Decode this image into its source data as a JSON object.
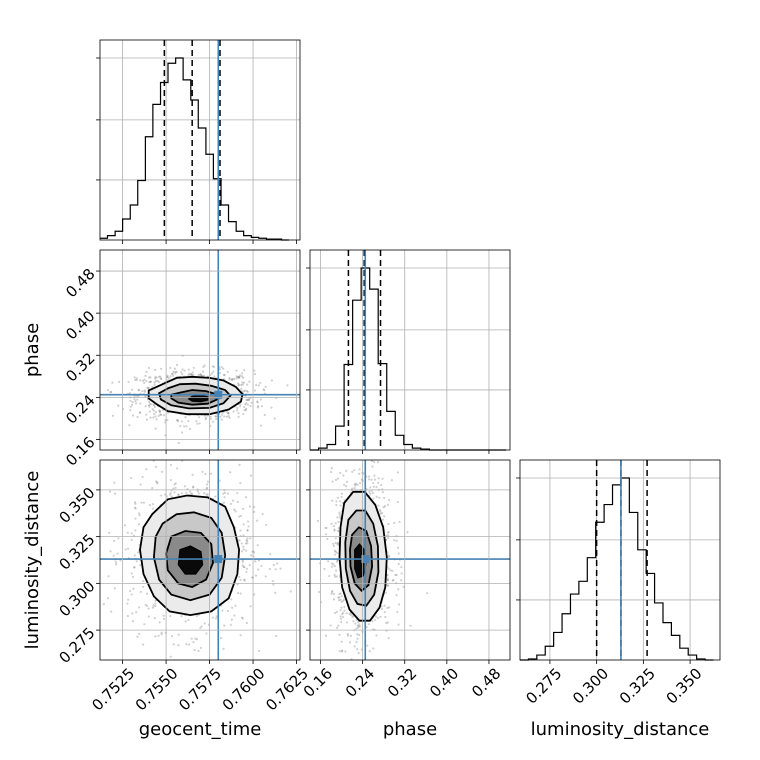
{
  "chart_data": {
    "type": "corner",
    "parameters": [
      "geocent_time",
      "phase",
      "luminosity_distance"
    ],
    "truths": [
      0.758,
      0.245,
      0.313
    ],
    "grid": true,
    "axes": [
      {
        "name": "geocent_time",
        "range": [
          0.7512,
          0.7627
        ],
        "ticks": [
          0.7525,
          0.755,
          0.7575,
          0.76,
          0.7625
        ],
        "tick_labels": [
          "0.7525",
          "0.7550",
          "0.7575",
          "0.7600",
          "0.7625"
        ],
        "quantiles": [
          0.7549,
          0.7565,
          0.7581
        ],
        "histogram": {
          "edges": [
            0.7512,
            0.75163,
            0.75207,
            0.7525,
            0.75294,
            0.75337,
            0.75381,
            0.75424,
            0.75468,
            0.75511,
            0.75555,
            0.75598,
            0.75642,
            0.75685,
            0.75729,
            0.75772,
            0.75816,
            0.75859,
            0.75903,
            0.75946,
            0.7599,
            0.76033,
            0.76077,
            0.7612,
            0.76164,
            0.76207
          ],
          "counts": [
            2,
            5,
            10,
            24,
            40,
            68,
            118,
            155,
            180,
            202,
            208,
            183,
            160,
            128,
            98,
            70,
            40,
            21,
            10,
            5,
            3,
            2,
            1,
            1,
            0
          ]
        }
      },
      {
        "name": "phase",
        "range": [
          0.14,
          0.52
        ],
        "ticks": [
          0.16,
          0.24,
          0.32,
          0.4,
          0.48
        ],
        "tick_labels": [
          "0.16",
          "0.24",
          "0.32",
          "0.40",
          "0.48"
        ],
        "quantiles": [
          0.213,
          0.243,
          0.274
        ],
        "histogram": {
          "edges": [
            0.14,
            0.1562,
            0.1724,
            0.1886,
            0.2048,
            0.221,
            0.2372,
            0.2534,
            0.2696,
            0.2858,
            0.302,
            0.3182,
            0.3344,
            0.3506,
            0.3668,
            0.383,
            0.3992,
            0.4154,
            0.4316,
            0.4478,
            0.464,
            0.4802,
            0.4964,
            0.5126
          ],
          "counts": [
            0,
            2,
            6,
            26,
            93,
            163,
            198,
            175,
            94,
            42,
            16,
            6,
            2,
            1,
            0,
            0,
            0,
            0,
            0,
            0,
            0,
            0,
            0
          ]
        }
      },
      {
        "name": "luminosity_distance",
        "range": [
          0.259,
          0.366
        ],
        "ticks": [
          0.275,
          0.3,
          0.325,
          0.35
        ],
        "tick_labels": [
          "0.275",
          "0.300",
          "0.325",
          "0.350"
        ],
        "quantiles": [
          0.3,
          0.313,
          0.327
        ],
        "histogram": {
          "edges": [
            0.259,
            0.2635,
            0.268,
            0.2725,
            0.277,
            0.2815,
            0.286,
            0.2905,
            0.295,
            0.2995,
            0.304,
            0.3085,
            0.313,
            0.3175,
            0.322,
            0.3265,
            0.331,
            0.3355,
            0.34,
            0.3445,
            0.349,
            0.3535,
            0.358,
            0.3625
          ],
          "counts": [
            0,
            1,
            5,
            14,
            28,
            47,
            67,
            80,
            104,
            140,
            158,
            178,
            185,
            150,
            112,
            88,
            58,
            38,
            25,
            12,
            5,
            1,
            0
          ]
        }
      }
    ],
    "pairs": [
      {
        "x": "geocent_time",
        "y": "phase",
        "peak": [
          0.7568,
          0.235
        ],
        "contours": [
          [
            [
              0.7548,
              0.265
            ],
            [
              0.7556,
              0.277
            ],
            [
              0.7565,
              0.279
            ],
            [
              0.7575,
              0.277
            ],
            [
              0.7583,
              0.272
            ],
            [
              0.759,
              0.26
            ],
            [
              0.7594,
              0.246
            ],
            [
              0.7593,
              0.232
            ],
            [
              0.7586,
              0.217
            ],
            [
              0.7575,
              0.208
            ],
            [
              0.7562,
              0.208
            ],
            [
              0.7551,
              0.214
            ],
            [
              0.7545,
              0.226
            ],
            [
              0.754,
              0.238
            ],
            [
              0.754,
              0.253
            ]
          ],
          [
            [
              0.7551,
              0.257
            ],
            [
              0.7558,
              0.265
            ],
            [
              0.7567,
              0.266
            ],
            [
              0.7576,
              0.262
            ],
            [
              0.7584,
              0.254
            ],
            [
              0.7587,
              0.243
            ],
            [
              0.7583,
              0.229
            ],
            [
              0.7575,
              0.22
            ],
            [
              0.7563,
              0.219
            ],
            [
              0.7553,
              0.225
            ],
            [
              0.7547,
              0.236
            ],
            [
              0.7546,
              0.248
            ]
          ],
          [
            [
              0.7558,
              0.249
            ],
            [
              0.7565,
              0.254
            ],
            [
              0.7573,
              0.252
            ],
            [
              0.7579,
              0.246
            ],
            [
              0.758,
              0.237
            ],
            [
              0.7574,
              0.228
            ],
            [
              0.7565,
              0.226
            ],
            [
              0.7557,
              0.23
            ],
            [
              0.7553,
              0.238
            ],
            [
              0.7553,
              0.245
            ]
          ],
          [
            [
              0.7565,
              0.242
            ],
            [
              0.757,
              0.244
            ],
            [
              0.7574,
              0.241
            ],
            [
              0.7574,
              0.235
            ],
            [
              0.757,
              0.232
            ],
            [
              0.7565,
              0.233
            ],
            [
              0.7563,
              0.237
            ]
          ]
        ]
      },
      {
        "x": "geocent_time",
        "y": "luminosity_distance",
        "peak": [
          0.7563,
          0.313
        ],
        "contours": [
          [
            [
              0.7542,
              0.337
            ],
            [
              0.7551,
              0.345
            ],
            [
              0.7562,
              0.347
            ],
            [
              0.7574,
              0.346
            ],
            [
              0.7584,
              0.341
            ],
            [
              0.7589,
              0.33
            ],
            [
              0.7592,
              0.318
            ],
            [
              0.7591,
              0.305
            ],
            [
              0.7586,
              0.292
            ],
            [
              0.7576,
              0.285
            ],
            [
              0.7564,
              0.283
            ],
            [
              0.7552,
              0.285
            ],
            [
              0.7543,
              0.293
            ],
            [
              0.7537,
              0.305
            ],
            [
              0.7535,
              0.318
            ],
            [
              0.7537,
              0.33
            ]
          ],
          [
            [
              0.7548,
              0.332
            ],
            [
              0.7556,
              0.337
            ],
            [
              0.7566,
              0.338
            ],
            [
              0.7576,
              0.335
            ],
            [
              0.7582,
              0.327
            ],
            [
              0.7584,
              0.315
            ],
            [
              0.7582,
              0.303
            ],
            [
              0.7575,
              0.294
            ],
            [
              0.7564,
              0.291
            ],
            [
              0.7553,
              0.294
            ],
            [
              0.7546,
              0.302
            ],
            [
              0.7543,
              0.314
            ],
            [
              0.7544,
              0.325
            ]
          ],
          [
            [
              0.7553,
              0.325
            ],
            [
              0.7561,
              0.328
            ],
            [
              0.757,
              0.327
            ],
            [
              0.7576,
              0.321
            ],
            [
              0.7577,
              0.311
            ],
            [
              0.7573,
              0.302
            ],
            [
              0.7565,
              0.298
            ],
            [
              0.7557,
              0.3
            ],
            [
              0.7551,
              0.307
            ],
            [
              0.755,
              0.316
            ]
          ],
          [
            [
              0.7558,
              0.318
            ],
            [
              0.7564,
              0.32
            ],
            [
              0.757,
              0.317
            ],
            [
              0.7571,
              0.31
            ],
            [
              0.7567,
              0.305
            ],
            [
              0.7561,
              0.305
            ],
            [
              0.7557,
              0.31
            ]
          ]
        ]
      },
      {
        "x": "phase",
        "y": "luminosity_distance",
        "peak": [
          0.235,
          0.313
        ],
        "contours": [
          [
            [
              0.205,
              0.343
            ],
            [
              0.222,
              0.349
            ],
            [
              0.244,
              0.349
            ],
            [
              0.264,
              0.342
            ],
            [
              0.279,
              0.33
            ],
            [
              0.286,
              0.314
            ],
            [
              0.283,
              0.298
            ],
            [
              0.272,
              0.287
            ],
            [
              0.254,
              0.28
            ],
            [
              0.234,
              0.28
            ],
            [
              0.215,
              0.286
            ],
            [
              0.201,
              0.298
            ],
            [
              0.196,
              0.314
            ],
            [
              0.198,
              0.33
            ]
          ],
          [
            [
              0.213,
              0.334
            ],
            [
              0.228,
              0.339
            ],
            [
              0.245,
              0.339
            ],
            [
              0.26,
              0.332
            ],
            [
              0.269,
              0.32
            ],
            [
              0.27,
              0.306
            ],
            [
              0.262,
              0.294
            ],
            [
              0.247,
              0.288
            ],
            [
              0.23,
              0.289
            ],
            [
              0.216,
              0.296
            ],
            [
              0.208,
              0.308
            ],
            [
              0.207,
              0.322
            ]
          ],
          [
            [
              0.22,
              0.326
            ],
            [
              0.233,
              0.33
            ],
            [
              0.247,
              0.328
            ],
            [
              0.256,
              0.32
            ],
            [
              0.258,
              0.309
            ],
            [
              0.251,
              0.299
            ],
            [
              0.238,
              0.296
            ],
            [
              0.225,
              0.3
            ],
            [
              0.217,
              0.309
            ],
            [
              0.216,
              0.318
            ]
          ],
          [
            [
              0.225,
              0.318
            ],
            [
              0.234,
              0.321
            ],
            [
              0.243,
              0.318
            ],
            [
              0.246,
              0.31
            ],
            [
              0.241,
              0.304
            ],
            [
              0.231,
              0.303
            ],
            [
              0.225,
              0.308
            ]
          ]
        ]
      }
    ]
  }
}
